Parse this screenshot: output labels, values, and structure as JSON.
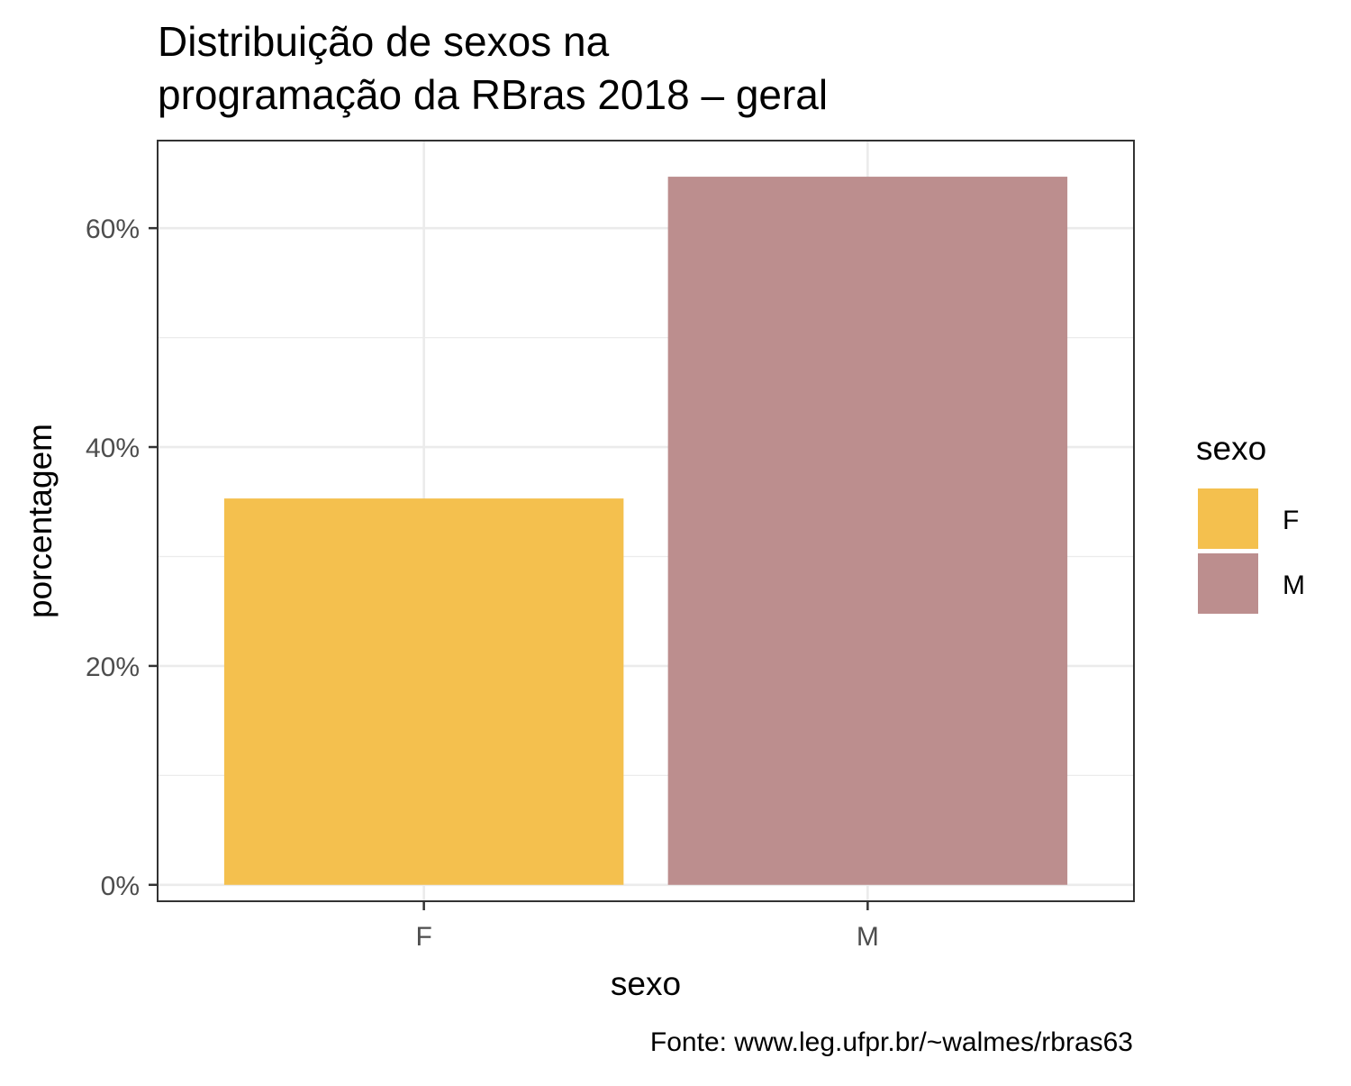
{
  "chart_data": {
    "type": "bar",
    "title_lines": [
      "Distribuição de sexos na",
      "programação da RBras 2018 – geral"
    ],
    "xlabel": "sexo",
    "ylabel": "porcentagem",
    "categories": [
      "F",
      "M"
    ],
    "values": [
      0.353,
      0.647
    ],
    "colors": [
      "#F4C04E",
      "#BC8E8E"
    ],
    "ylim": [
      -0.015,
      0.68
    ],
    "yticks": [
      {
        "value": 0.0,
        "label": "0%"
      },
      {
        "value": 0.2,
        "label": "20%"
      },
      {
        "value": 0.4,
        "label": "40%"
      },
      {
        "value": 0.6,
        "label": "60%"
      }
    ],
    "minor_yticks": [
      0.1,
      0.3,
      0.5
    ],
    "grid": true,
    "legend": {
      "title": "sexo",
      "position": "right",
      "items": [
        {
          "label": "F",
          "color": "#F4C04E"
        },
        {
          "label": "M",
          "color": "#BC8E8E"
        }
      ]
    },
    "caption": "Fonte: www.leg.ufpr.br/~walmes/rbras63"
  }
}
